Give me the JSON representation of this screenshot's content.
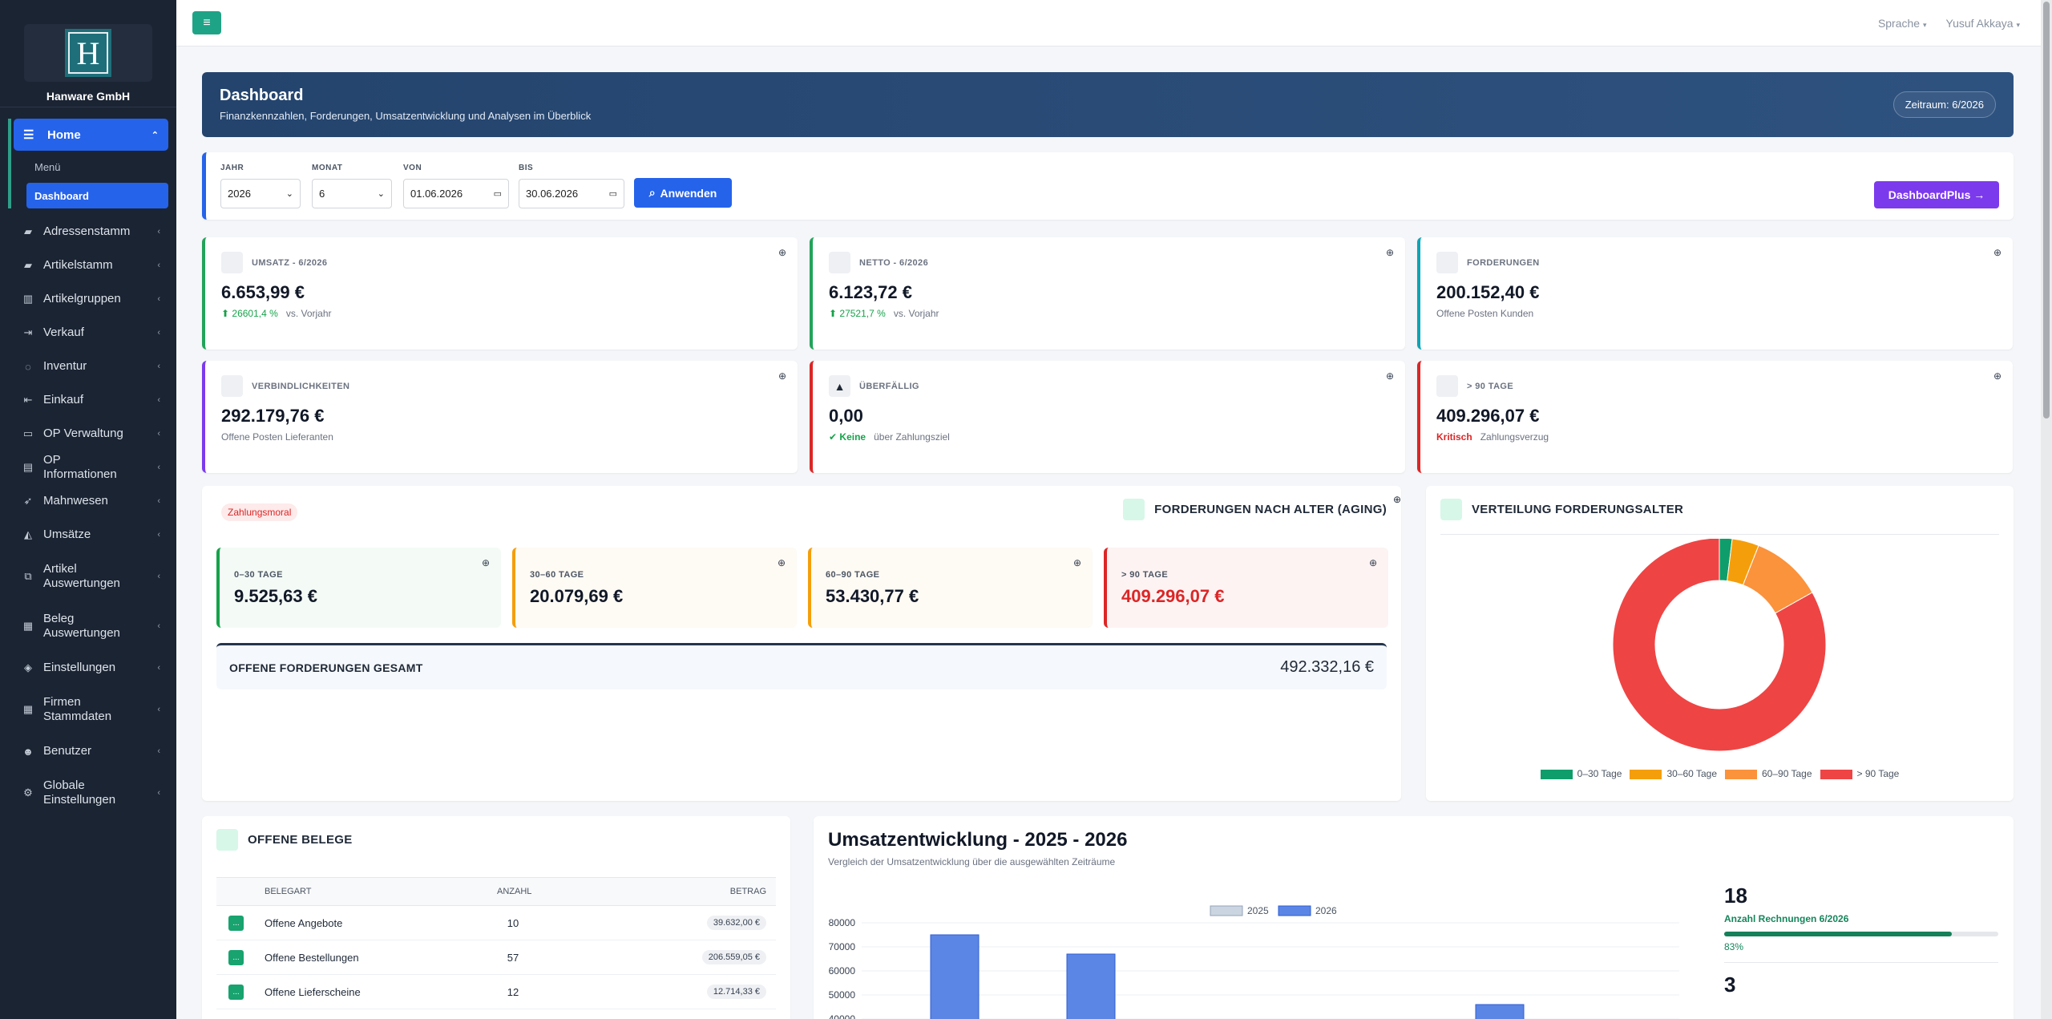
{
  "brand": {
    "logo_letter": "H",
    "name": "Hanware GmbH"
  },
  "sidebar": {
    "home": {
      "label": "Home"
    },
    "sub_items": [
      {
        "label": "Menü",
        "active": false
      },
      {
        "label": "Dashboard",
        "active": true
      }
    ],
    "items": [
      {
        "label": "Adressenstamm",
        "icon": "book-icon",
        "glyph": "▰"
      },
      {
        "label": "Artikelstamm",
        "icon": "book-icon",
        "glyph": "▰"
      },
      {
        "label": "Artikelgruppen",
        "icon": "building-icon",
        "glyph": "▥"
      },
      {
        "label": "Verkauf",
        "icon": "sign-out-icon",
        "glyph": "⇥"
      },
      {
        "label": "Inventur",
        "icon": "spinner-icon",
        "glyph": "◌"
      },
      {
        "label": "Einkauf",
        "icon": "sign-in-icon",
        "glyph": "⇤"
      },
      {
        "label": "OP Verwaltung",
        "icon": "credit-card-icon",
        "glyph": "▭"
      },
      {
        "label": "OP Informationen",
        "icon": "money-icon",
        "glyph": "▤"
      },
      {
        "label": "Mahnwesen",
        "icon": "rocket-icon",
        "glyph": "➶"
      },
      {
        "label": "Umsätze",
        "icon": "area-chart-icon",
        "glyph": "◭"
      },
      {
        "label": "Artikel Auswertungen",
        "icon": "cubes-icon",
        "glyph": "⧉"
      },
      {
        "label": "Beleg Auswertungen",
        "icon": "list-alt-icon",
        "glyph": "▦"
      },
      {
        "label": "Einstellungen",
        "icon": "tags-icon",
        "glyph": "◈"
      },
      {
        "label": "Firmen Stammdaten",
        "icon": "th-large-icon",
        "glyph": "▦"
      },
      {
        "label": "Benutzer",
        "icon": "users-icon",
        "glyph": "☻"
      },
      {
        "label": "Globale Einstellungen",
        "icon": "cogs-icon",
        "glyph": "⚙"
      }
    ]
  },
  "topbar": {
    "language": "Sprache",
    "user": "Yusuf Akkaya"
  },
  "hero": {
    "title": "Dashboard",
    "subtitle": "Finanzkennzahlen, Forderungen, Umsatzentwicklung und Analysen im Überblick",
    "period": "Zeitraum: 6/2026"
  },
  "filters": {
    "year_label": "JAHR",
    "year_value": "2026",
    "month_label": "MONAT",
    "month_value": "6",
    "from_label": "VON",
    "from_value": "01.06.2026",
    "to_label": "BIS",
    "to_value": "30.06.2026",
    "apply_label": "Anwenden",
    "plus_label": "DashboardPlus →"
  },
  "kpis": [
    {
      "title": "UMSATZ - 6/2026",
      "value": "6.653,99 €",
      "trend": "26601,4 %",
      "note": "vs. Vorjahr",
      "color": "#22a35a"
    },
    {
      "title": "NETTO - 6/2026",
      "value": "6.123,72 €",
      "trend": "27521,7 %",
      "note": "vs. Vorjahr",
      "color": "#22a35a"
    },
    {
      "title": "FORDERUNGEN",
      "value": "200.152,40 €",
      "note": "Offene Posten Kunden",
      "color": "#0ea5b7"
    },
    {
      "title": "VERBINDLICHKEITEN",
      "value": "292.179,76 €",
      "note": "Offene Posten Lieferanten",
      "color": "#7c3aed"
    },
    {
      "title": "ÜBERFÄLLIG",
      "value": "0,00",
      "status": "Keine",
      "note": "über Zahlungsziel",
      "color": "#dc2626"
    },
    {
      "title": "> 90 TAGE",
      "value": "409.296,07 €",
      "status": "Kritisch",
      "note": "Zahlungsverzug",
      "color": "#dc2626"
    }
  ],
  "aging": {
    "pill": "Zahlungsmoral",
    "title": "FORDERUNGEN NACH ALTER (AGING)",
    "buckets": [
      {
        "title": "0–30 TAGE",
        "value": "9.525,63 €",
        "color": "#16a34a",
        "bg": "#f4fbf6"
      },
      {
        "title": "30–60 TAGE",
        "value": "20.079,69 €",
        "color": "#f59e0b",
        "bg": "#fefaf4"
      },
      {
        "title": "60–90 TAGE",
        "value": "53.430,77 €",
        "color": "#f59e0b",
        "bg": "#fefaf4"
      },
      {
        "title": "> 90 TAGE",
        "value": "409.296,07 €",
        "color": "#dc2626",
        "bg": "#fdf3f3"
      }
    ],
    "total_label": "OFFENE FORDERUNGEN GESAMT",
    "total_value": "492.332,16 €"
  },
  "donut": {
    "title": "VERTEILUNG FORDERUNGSALTER"
  },
  "belege": {
    "title": "OFFENE BELEGE",
    "columns": [
      "BELEGART",
      "ANZAHL",
      "BETRAG"
    ],
    "rows": [
      {
        "badge": "...",
        "type": "Offene Angebote",
        "count": "10",
        "amount": "39.632,00 €"
      },
      {
        "badge": "...",
        "type": "Offene Bestellungen",
        "count": "57",
        "amount": "206.559,05 €"
      },
      {
        "badge": "...",
        "type": "Offene Lieferscheine",
        "count": "12",
        "amount": "12.714,33 €"
      }
    ]
  },
  "umsatz": {
    "title": "Umsatzentwicklung - 2025 - 2026",
    "subtitle": "Vergleich der Umsatzentwicklung über die ausgewählten Zeiträume",
    "stat_count": "18",
    "stat_label": "Anzahl Rechnungen 6/2026",
    "stat_progress": 0.83,
    "stat_pct": "83%",
    "stat_count2": "3"
  },
  "chart_data": [
    {
      "type": "pie",
      "labels": [
        "0–30 Tage",
        "30–60 Tage",
        "60–90 Tage",
        "> 90 Tage"
      ],
      "values": [
        9525.63,
        20079.69,
        53430.77,
        409296.07
      ],
      "colors": [
        "#0f9d6b",
        "#f59e0b",
        "#fb923c",
        "#ef4444"
      ],
      "legend": "bottom"
    },
    {
      "type": "bar",
      "series": [
        {
          "name": "2025",
          "color": "#cbd5e1",
          "values": [
            0,
            0,
            0,
            0,
            0
          ]
        },
        {
          "name": "2026",
          "color": "#5b86e5",
          "values": [
            75000,
            67000,
            0,
            0,
            46000
          ]
        }
      ],
      "yticks": [
        40000,
        50000,
        60000,
        70000,
        80000
      ],
      "ylim": [
        0,
        80000
      ],
      "legend": "top"
    }
  ]
}
